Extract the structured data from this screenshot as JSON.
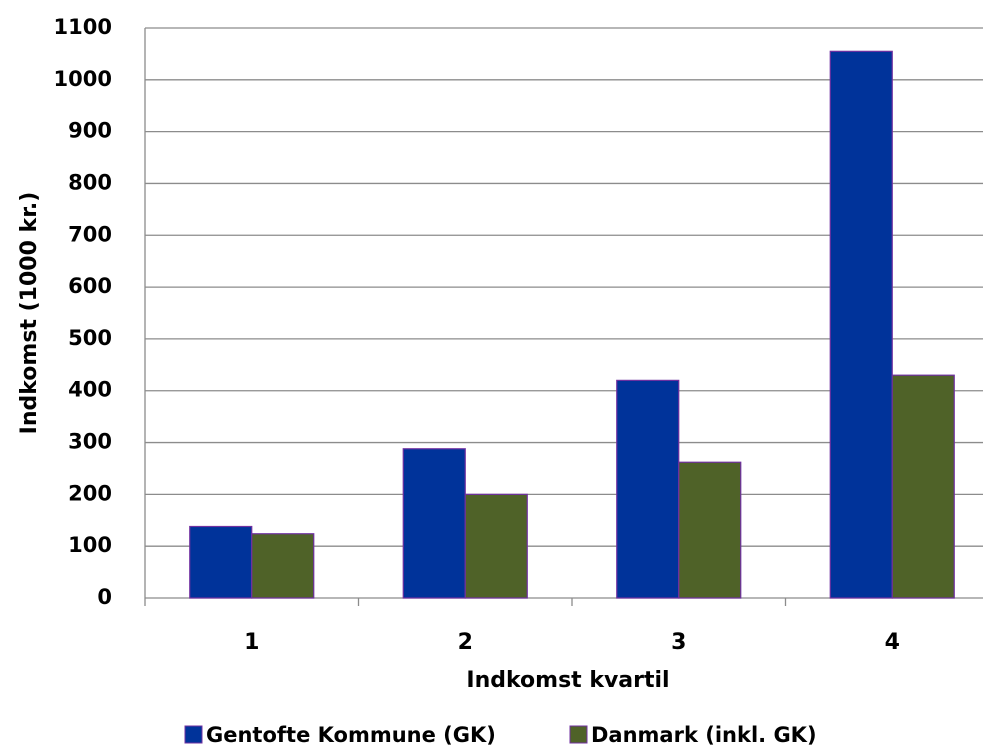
{
  "chart_data": {
    "type": "bar",
    "categories": [
      "1",
      "2",
      "3",
      "4"
    ],
    "series": [
      {
        "name": "Gentofte Kommune (GK)",
        "color": "#00339a",
        "values": [
          138,
          288,
          420,
          1055
        ]
      },
      {
        "name": "Danmark (inkl. GK)",
        "color": "#4f6228",
        "values": [
          124,
          200,
          262,
          430
        ]
      }
    ],
    "x_label": "Indkomst kvartil",
    "y_label": "Indkomst (1000 kr.)",
    "ylim": [
      0,
      1100
    ],
    "yticks": [
      0,
      100,
      200,
      300,
      400,
      500,
      600,
      700,
      800,
      900,
      1000,
      1100
    ],
    "grid": true,
    "legend": "bottom"
  }
}
